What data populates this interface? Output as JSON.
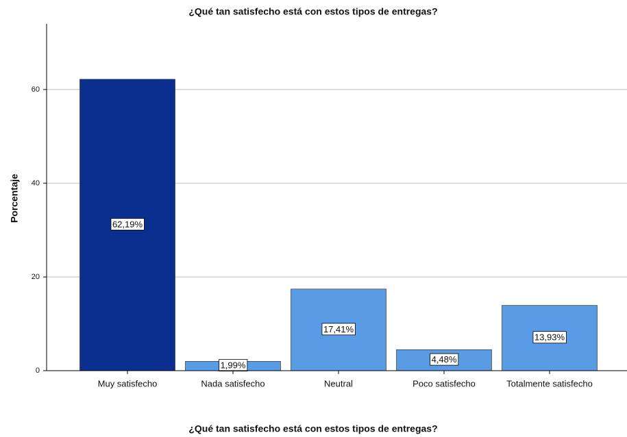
{
  "chart_data": {
    "type": "bar",
    "title": "¿Qué tan satisfecho está con estos tipos de entregas?",
    "x_label": "¿Qué tan satisfecho está con estos tipos de entregas?",
    "y_label": "Porcentaje",
    "categories": [
      "Muy satisfecho",
      "Nada satisfecho",
      "Neutral",
      "Poco satisfecho",
      "Totalmente satisfecho"
    ],
    "values": [
      62.19,
      1.99,
      17.41,
      4.48,
      13.93
    ],
    "value_labels": [
      "62,19%",
      "1,99%",
      "17,41%",
      "4,48%",
      "13,93%"
    ],
    "colors": [
      "#0b2f8e",
      "#5a9be6",
      "#5a9be6",
      "#5a9be6",
      "#5a9be6"
    ],
    "ylim": [
      0,
      74
    ],
    "yticks": [
      0,
      20,
      40,
      60
    ],
    "grid": true
  }
}
